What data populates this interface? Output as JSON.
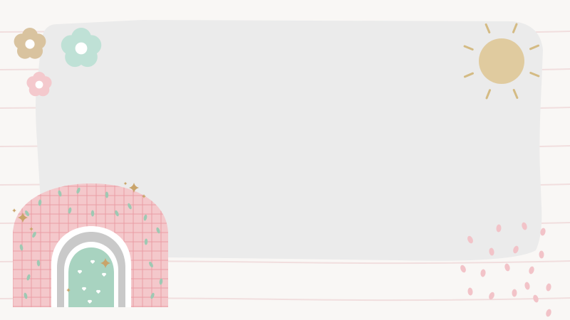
{
  "canvas": {
    "background_color": "#f9f7f5",
    "line_color": "#f1dede",
    "card_color": "#ebebeb"
  },
  "decorations": {
    "flowers": [
      {
        "name": "tan-flower-icon",
        "color": "#d9c39f"
      },
      {
        "name": "mint-flower-icon",
        "color": "#bfe1d6"
      },
      {
        "name": "pink-flower-icon",
        "color": "#f4c9cd"
      }
    ],
    "sun": {
      "name": "sun-icon",
      "color": "#e0cb9f"
    },
    "rainbow": {
      "name": "rainbow-icon",
      "outer_color": "#f4c8cb",
      "grid_color": "#ea9ea6",
      "inner_band_color": "#c9c9c9",
      "center_color": "#a8d3c0",
      "sparkle_color": "#c9a46a"
    },
    "confetti": {
      "name": "pink-confetti-dots",
      "color": "#f2c3c8"
    }
  }
}
